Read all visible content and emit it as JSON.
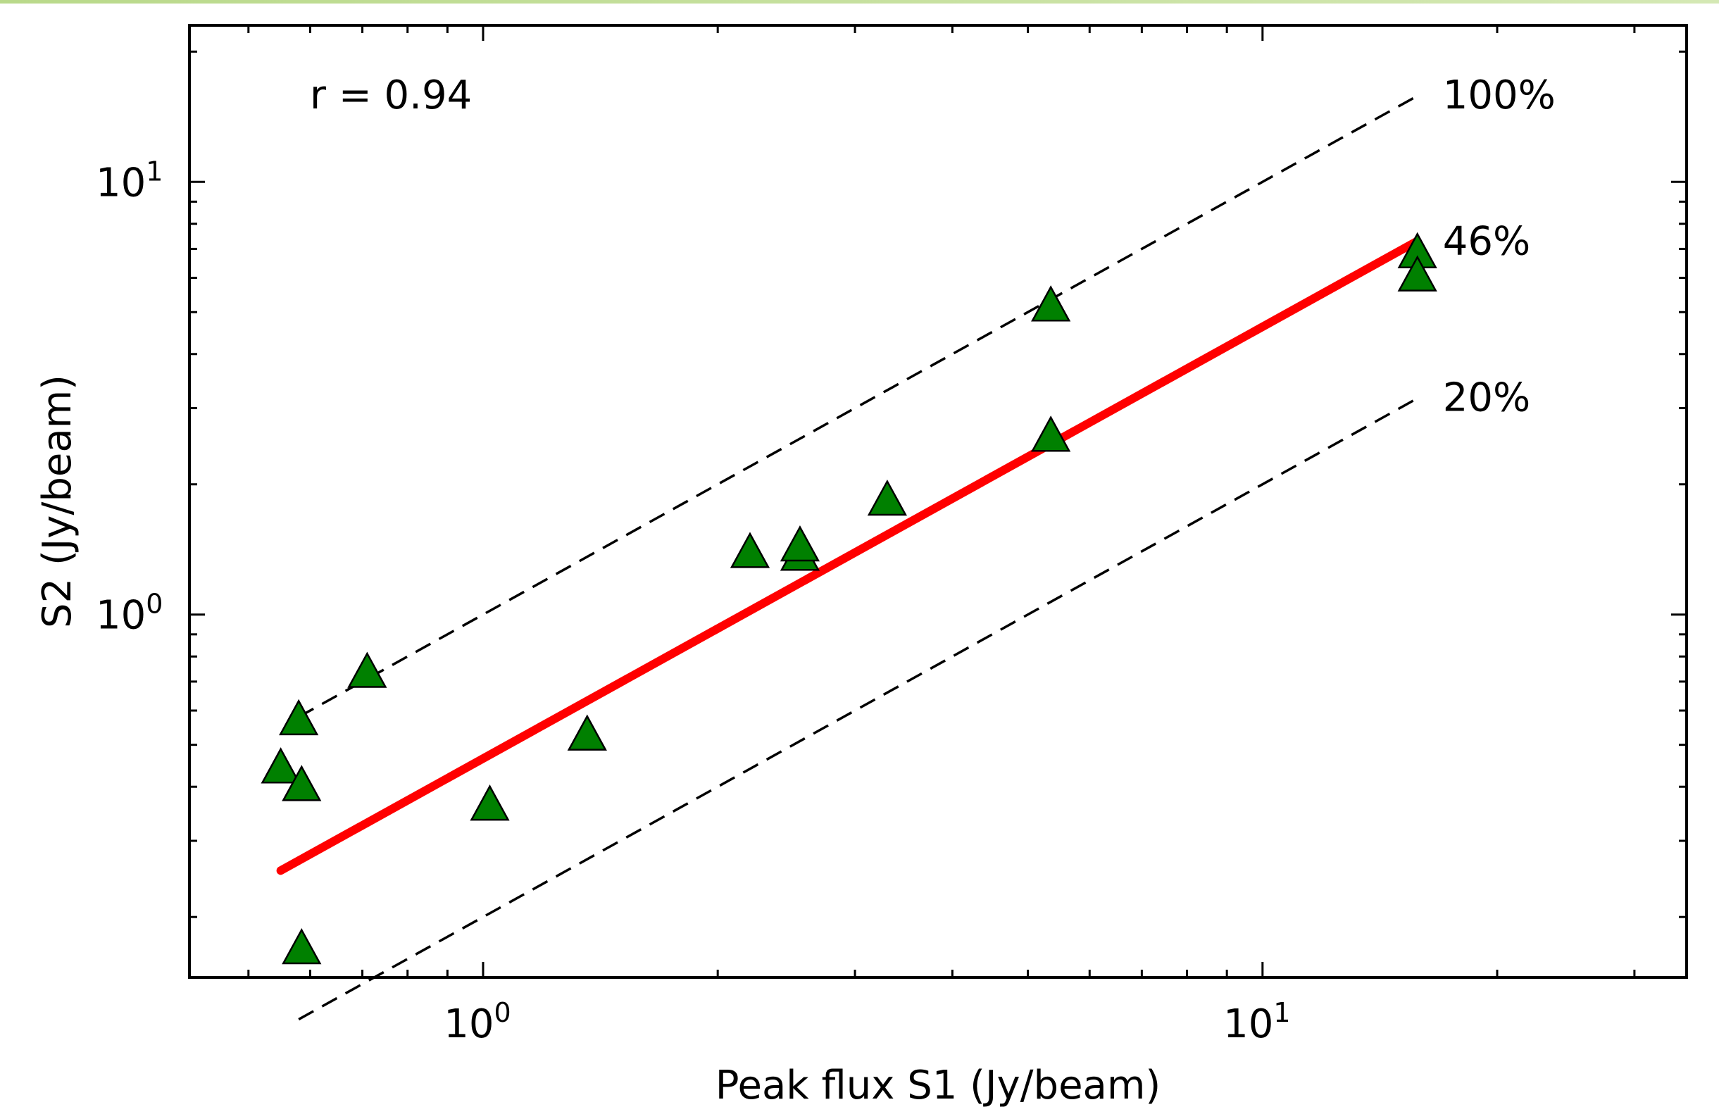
{
  "chart_data": {
    "type": "scatter",
    "title": "",
    "xlabel": "Peak flux S1 (Jy/beam)",
    "ylabel": "S2 (Jy/beam)",
    "xscale": "log",
    "yscale": "log",
    "xlim": [
      0.42,
      35
    ],
    "ylim": [
      0.145,
      23
    ],
    "grid": false,
    "x_ticks": [
      {
        "value": 1,
        "base": "10",
        "exp": "0"
      },
      {
        "value": 10,
        "base": "10",
        "exp": "1"
      }
    ],
    "y_ticks": [
      {
        "value": 1,
        "base": "10",
        "exp": "0"
      },
      {
        "value": 10,
        "base": "10",
        "exp": "1"
      }
    ],
    "correlation_label": "r = 0.94",
    "series": [
      {
        "marker": "triangle",
        "color": "#008000",
        "points": [
          {
            "x": 0.55,
            "y": 0.445
          },
          {
            "x": 0.58,
            "y": 0.575
          },
          {
            "x": 0.585,
            "y": 0.405
          },
          {
            "x": 0.585,
            "y": 0.17
          },
          {
            "x": 0.71,
            "y": 0.74
          },
          {
            "x": 1.02,
            "y": 0.365
          },
          {
            "x": 1.36,
            "y": 0.53
          },
          {
            "x": 2.2,
            "y": 1.4
          },
          {
            "x": 2.55,
            "y": 1.38
          },
          {
            "x": 2.55,
            "y": 1.45
          },
          {
            "x": 3.3,
            "y": 1.85
          },
          {
            "x": 5.35,
            "y": 2.6
          },
          {
            "x": 5.35,
            "y": 5.2
          },
          {
            "x": 15.8,
            "y": 6.9
          },
          {
            "x": 15.8,
            "y": 6.1
          }
        ]
      }
    ],
    "fit_line": {
      "color": "#ff0000",
      "points": [
        [
          0.55,
          0.256
        ],
        [
          15.8,
          7.3
        ]
      ]
    },
    "reference_lines": [
      {
        "label": "100%",
        "points": [
          [
            0.58,
            0.58
          ],
          [
            15.8,
            15.8
          ]
        ]
      },
      {
        "label": "46%",
        "points": [
          [
            0.55,
            0.2532
          ],
          [
            15.8,
            7.27
          ]
        ]
      },
      {
        "label": "20%",
        "points": [
          [
            0.58,
            0.116
          ],
          [
            15.8,
            3.16
          ]
        ]
      }
    ]
  }
}
